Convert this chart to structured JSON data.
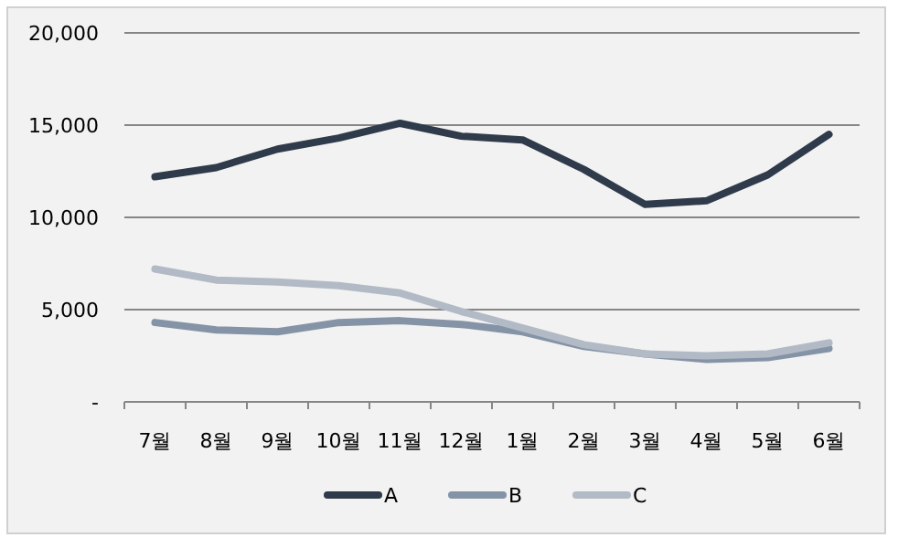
{
  "chart_data": {
    "type": "line",
    "categories": [
      "7월",
      "8월",
      "9월",
      "10월",
      "11월",
      "12월",
      "1월",
      "2월",
      "3월",
      "4월",
      "5월",
      "6월"
    ],
    "series": [
      {
        "name": "A",
        "color": "#2f3a4a",
        "values": [
          12200,
          12700,
          13700,
          14300,
          15100,
          14400,
          14200,
          12600,
          10700,
          10900,
          12300,
          14500
        ]
      },
      {
        "name": "B",
        "color": "#8593a7",
        "values": [
          4300,
          3900,
          3800,
          4300,
          4400,
          4200,
          3800,
          3000,
          2600,
          2300,
          2400,
          2900
        ]
      },
      {
        "name": "C",
        "color": "#b2bac6",
        "values": [
          7200,
          6600,
          6500,
          6300,
          5900,
          4900,
          4000,
          3100,
          2600,
          2500,
          2600,
          3200
        ]
      }
    ],
    "ylim": [
      0,
      20000
    ],
    "yticks": [
      {
        "value": 0,
        "label": "-"
      },
      {
        "value": 5000,
        "label": "5,000"
      },
      {
        "value": 10000,
        "label": "10,000"
      },
      {
        "value": 15000,
        "label": "15,000"
      },
      {
        "value": 20000,
        "label": "20,000"
      }
    ],
    "grid": "y",
    "legend": "bottom",
    "marker": "none",
    "line_style": "solid"
  }
}
